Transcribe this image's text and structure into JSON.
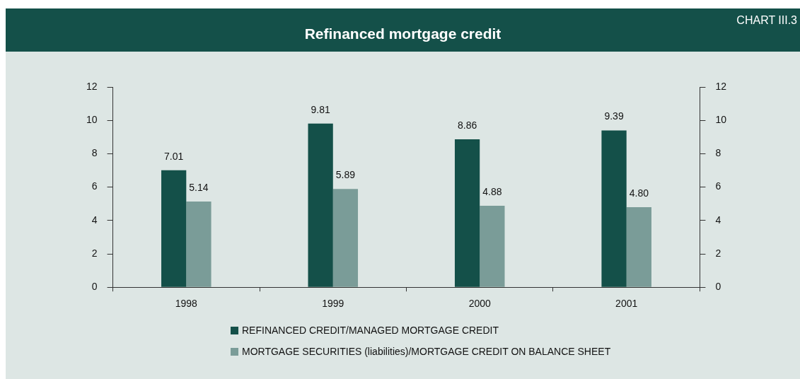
{
  "chart_data": {
    "type": "bar",
    "title": "Refinanced mortgage credit",
    "annotations": [
      "CHART III.3"
    ],
    "categories": [
      "1998",
      "1999",
      "2000",
      "2001"
    ],
    "series": [
      {
        "name": "REFINANCED CREDIT/MANAGED MORTGAGE CREDIT",
        "color": "#145049",
        "values": [
          7.01,
          9.81,
          8.86,
          9.39
        ],
        "value_labels": [
          "7.01",
          "9.81",
          "8.86",
          "9.39"
        ]
      },
      {
        "name": "MORTGAGE SECURITIES (liabilities)/MORTGAGE CREDIT ON BALANCE SHEET",
        "color": "#7a9c98",
        "values": [
          5.14,
          5.89,
          4.88,
          4.8
        ],
        "value_labels": [
          "5.14",
          "5.89",
          "4.88",
          "4.80"
        ]
      }
    ],
    "ylim": [
      0,
      12
    ],
    "yticks": [
      0,
      2,
      4,
      6,
      8,
      10,
      12
    ],
    "y2lim": [
      0,
      12
    ],
    "y2ticks": [
      0,
      2,
      4,
      6,
      8,
      10,
      12
    ],
    "grid": false,
    "legend": "bottom"
  }
}
